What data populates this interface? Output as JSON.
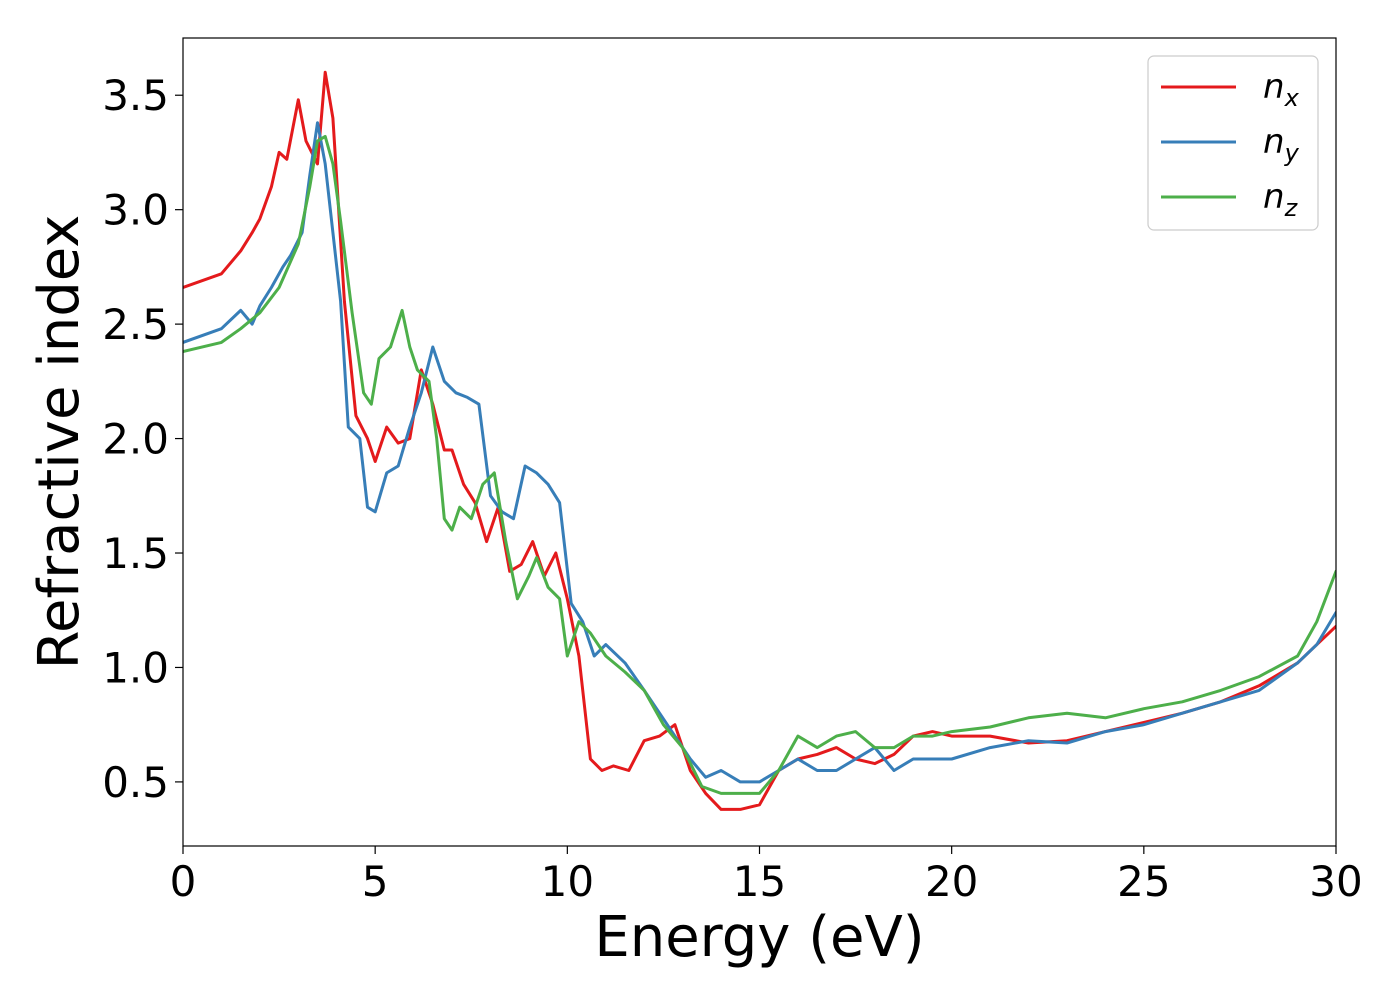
{
  "chart_data": {
    "type": "line",
    "title": "",
    "xlabel": "Energy (eV)",
    "ylabel": "Refractive index",
    "xlim": [
      0,
      30
    ],
    "ylim": [
      0.22,
      3.75
    ],
    "xticks": [
      0,
      5,
      10,
      15,
      20,
      25,
      30
    ],
    "yticks": [
      0.5,
      1.0,
      1.5,
      2.0,
      2.5,
      3.0,
      3.5
    ],
    "xtick_labels": [
      "0",
      "5",
      "10",
      "15",
      "20",
      "25",
      "30"
    ],
    "ytick_labels": [
      "0.5",
      "1.0",
      "1.5",
      "2.0",
      "2.5",
      "3.0",
      "3.5"
    ],
    "grid": false,
    "legend_position": "top-right",
    "series": [
      {
        "name": "n",
        "subscript": "x",
        "color": "#e41a1c",
        "x": [
          0,
          1,
          1.5,
          1.8,
          2.0,
          2.3,
          2.5,
          2.7,
          3.0,
          3.2,
          3.5,
          3.7,
          3.9,
          4.2,
          4.5,
          4.8,
          5.0,
          5.3,
          5.6,
          5.9,
          6.2,
          6.5,
          6.8,
          7.0,
          7.3,
          7.6,
          7.9,
          8.2,
          8.5,
          8.8,
          9.1,
          9.4,
          9.7,
          10.0,
          10.3,
          10.6,
          10.9,
          11.2,
          11.6,
          12.0,
          12.4,
          12.8,
          13.2,
          13.6,
          14.0,
          14.5,
          15.0,
          15.5,
          16.0,
          16.5,
          17.0,
          17.5,
          18.0,
          18.5,
          19.0,
          19.5,
          20.0,
          21.0,
          22.0,
          23.0,
          24.0,
          25.0,
          26.0,
          27.0,
          28.0,
          29.0,
          29.5,
          30.0
        ],
        "values": [
          2.66,
          2.72,
          2.82,
          2.9,
          2.96,
          3.1,
          3.25,
          3.22,
          3.48,
          3.3,
          3.2,
          3.6,
          3.4,
          2.6,
          2.1,
          2.0,
          1.9,
          2.05,
          1.98,
          2.0,
          2.3,
          2.15,
          1.95,
          1.95,
          1.8,
          1.72,
          1.55,
          1.7,
          1.42,
          1.45,
          1.55,
          1.4,
          1.5,
          1.3,
          1.05,
          0.6,
          0.55,
          0.57,
          0.55,
          0.68,
          0.7,
          0.75,
          0.55,
          0.45,
          0.38,
          0.38,
          0.4,
          0.55,
          0.6,
          0.62,
          0.65,
          0.6,
          0.58,
          0.62,
          0.7,
          0.72,
          0.7,
          0.7,
          0.67,
          0.68,
          0.72,
          0.76,
          0.8,
          0.85,
          0.92,
          1.02,
          1.1,
          1.18
        ]
      },
      {
        "name": "n",
        "subscript": "y",
        "color": "#377eb8",
        "x": [
          0,
          1.0,
          1.5,
          1.8,
          2.0,
          2.3,
          2.6,
          2.8,
          3.1,
          3.3,
          3.5,
          3.7,
          3.9,
          4.1,
          4.3,
          4.6,
          4.8,
          5.0,
          5.3,
          5.6,
          5.9,
          6.2,
          6.5,
          6.8,
          7.1,
          7.4,
          7.7,
          8.0,
          8.3,
          8.6,
          8.9,
          9.2,
          9.5,
          9.8,
          10.1,
          10.4,
          10.7,
          11.0,
          11.5,
          12.0,
          12.4,
          12.8,
          13.2,
          13.6,
          14.0,
          14.5,
          15.0,
          15.5,
          16.0,
          16.5,
          17.0,
          17.5,
          18.0,
          18.5,
          19.0,
          19.5,
          20.0,
          21.0,
          22.0,
          23.0,
          24.0,
          25.0,
          26.0,
          27.0,
          28.0,
          29.0,
          29.5,
          30.0
        ],
        "values": [
          2.42,
          2.48,
          2.56,
          2.5,
          2.58,
          2.66,
          2.75,
          2.8,
          2.9,
          3.15,
          3.38,
          3.2,
          2.9,
          2.6,
          2.05,
          2.0,
          1.7,
          1.68,
          1.85,
          1.88,
          2.05,
          2.2,
          2.4,
          2.25,
          2.2,
          2.18,
          2.15,
          1.75,
          1.68,
          1.65,
          1.88,
          1.85,
          1.8,
          1.72,
          1.28,
          1.2,
          1.05,
          1.1,
          1.02,
          0.9,
          0.8,
          0.7,
          0.6,
          0.52,
          0.55,
          0.5,
          0.5,
          0.55,
          0.6,
          0.55,
          0.55,
          0.6,
          0.65,
          0.55,
          0.6,
          0.6,
          0.6,
          0.65,
          0.68,
          0.67,
          0.72,
          0.75,
          0.8,
          0.85,
          0.9,
          1.02,
          1.1,
          1.24
        ]
      },
      {
        "name": "n",
        "subscript": "z",
        "color": "#4daf4a",
        "x": [
          0,
          1.0,
          1.5,
          2.0,
          2.5,
          3.0,
          3.3,
          3.5,
          3.7,
          3.9,
          4.1,
          4.4,
          4.7,
          4.9,
          5.1,
          5.4,
          5.7,
          5.9,
          6.1,
          6.4,
          6.6,
          6.8,
          7.0,
          7.2,
          7.5,
          7.8,
          8.1,
          8.4,
          8.7,
          9.0,
          9.2,
          9.5,
          9.8,
          10.0,
          10.3,
          10.6,
          11.0,
          11.5,
          12.0,
          12.5,
          13.0,
          13.5,
          14.0,
          14.5,
          15.0,
          15.5,
          16.0,
          16.5,
          17.0,
          17.5,
          18.0,
          18.5,
          19.0,
          19.5,
          20.0,
          21.0,
          22.0,
          23.0,
          24.0,
          25.0,
          26.0,
          27.0,
          28.0,
          29.0,
          29.5,
          30.0
        ],
        "values": [
          2.38,
          2.42,
          2.48,
          2.55,
          2.66,
          2.85,
          3.1,
          3.3,
          3.32,
          3.2,
          2.95,
          2.55,
          2.2,
          2.15,
          2.35,
          2.4,
          2.56,
          2.4,
          2.3,
          2.25,
          2.0,
          1.65,
          1.6,
          1.7,
          1.65,
          1.8,
          1.85,
          1.55,
          1.3,
          1.4,
          1.48,
          1.35,
          1.3,
          1.05,
          1.2,
          1.15,
          1.05,
          0.98,
          0.9,
          0.75,
          0.65,
          0.48,
          0.45,
          0.45,
          0.45,
          0.55,
          0.7,
          0.65,
          0.7,
          0.72,
          0.65,
          0.65,
          0.7,
          0.7,
          0.72,
          0.74,
          0.78,
          0.8,
          0.78,
          0.82,
          0.85,
          0.9,
          0.96,
          1.05,
          1.2,
          1.42
        ]
      }
    ]
  }
}
